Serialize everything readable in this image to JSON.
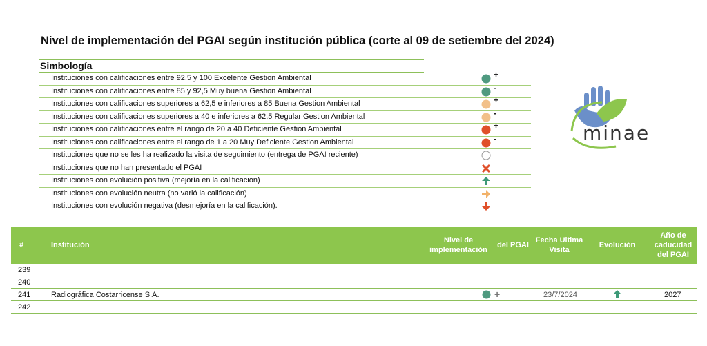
{
  "title": "Nivel de implementación del PGAI según institución pública (corte al 09  de setiembre del 2024)",
  "legend": {
    "heading": "Simbología",
    "items": [
      {
        "text": "Instituciones con calificaciones entre 92,5 y 100 Excelente Gestion Ambiental",
        "symbol": "dot",
        "color": "#4f9a80",
        "mark": "+"
      },
      {
        "text": "Instituciones con calificaciones entre 85 y 92,5 Muy buena Gestion Ambiental",
        "symbol": "dot",
        "color": "#4f9a80",
        "mark": "-"
      },
      {
        "text": "Instituciones con calificaciones superiores a 62,5 e inferiores a 85 Buena Gestion Ambiental",
        "symbol": "dot",
        "color": "#f2c08a",
        "mark": "+"
      },
      {
        "text": "Instituciones con calificaciones superiores a 40 e inferiores a 62,5 Regular Gestion Ambiental",
        "symbol": "dot",
        "color": "#f2c08a",
        "mark": "-"
      },
      {
        "text": "Instituciones con calificaciones entre el rango de 20 a 40 Deficiente Gestion Ambiental",
        "symbol": "dot",
        "color": "#e0502a",
        "mark": "+"
      },
      {
        "text": "Instituciones con calificaciones entre el rango de 1 a 20 Muy Deficiente Gestion Ambiental",
        "symbol": "dot",
        "color": "#e0502a",
        "mark": "-"
      },
      {
        "text": "Instituciones que no se les ha realizado la visita de seguimiento (entrega de PGAI reciente)",
        "symbol": "empty-circle",
        "color": "#9a9a9a",
        "mark": ""
      },
      {
        "text": "Instituciones que no han presentado el PGAI",
        "symbol": "x-mark",
        "color": "#e0502a",
        "mark": ""
      },
      {
        "text": "Instituciones con  evolución positiva (mejoría en la calificación)",
        "symbol": "arrow-up",
        "color": "#3d9a78",
        "mark": ""
      },
      {
        "text": "Instituciones con evolución neutra (no varió la calificación)",
        "symbol": "arrow-right",
        "color": "#f2b26a",
        "mark": ""
      },
      {
        "text": "Instituciones con evolución negativa (desmejoría en la calificación).",
        "symbol": "arrow-down",
        "color": "#e0502a",
        "mark": ""
      }
    ]
  },
  "logo": {
    "text": "minae",
    "colors": {
      "blue": "#6b8fc9",
      "green": "#8dc64d",
      "text": "#333333"
    }
  },
  "table": {
    "headers": {
      "num": "#",
      "institucion": "Institución",
      "nivel": "Nivel de implementación",
      "del_pgai": "del PGAI",
      "fecha": "Fecha Ultima Visita",
      "evolucion": "Evolución",
      "anio": "Año de caducidad del PGAI"
    },
    "rows": [
      {
        "num": "239",
        "institucion": "",
        "nivel": "",
        "del_pgai": "",
        "fecha": "",
        "evolucion": "",
        "anio": ""
      },
      {
        "num": "240",
        "institucion": "",
        "nivel": "",
        "del_pgai": "",
        "fecha": "",
        "evolucion": "",
        "anio": ""
      },
      {
        "num": "241",
        "institucion": "Radiográfica Costarricense S.A.",
        "nivel": "dot-green",
        "del_pgai": "+",
        "fecha": "23/7/2024",
        "evolucion": "arrow-up",
        "anio": "2027"
      },
      {
        "num": "242",
        "institucion": "",
        "nivel": "",
        "del_pgai": "",
        "fecha": "",
        "evolucion": "",
        "anio": ""
      }
    ],
    "colors": {
      "header": "#8dc64d",
      "dot_green": "#4f9a80",
      "arrow_up": "#3d9a78"
    }
  }
}
